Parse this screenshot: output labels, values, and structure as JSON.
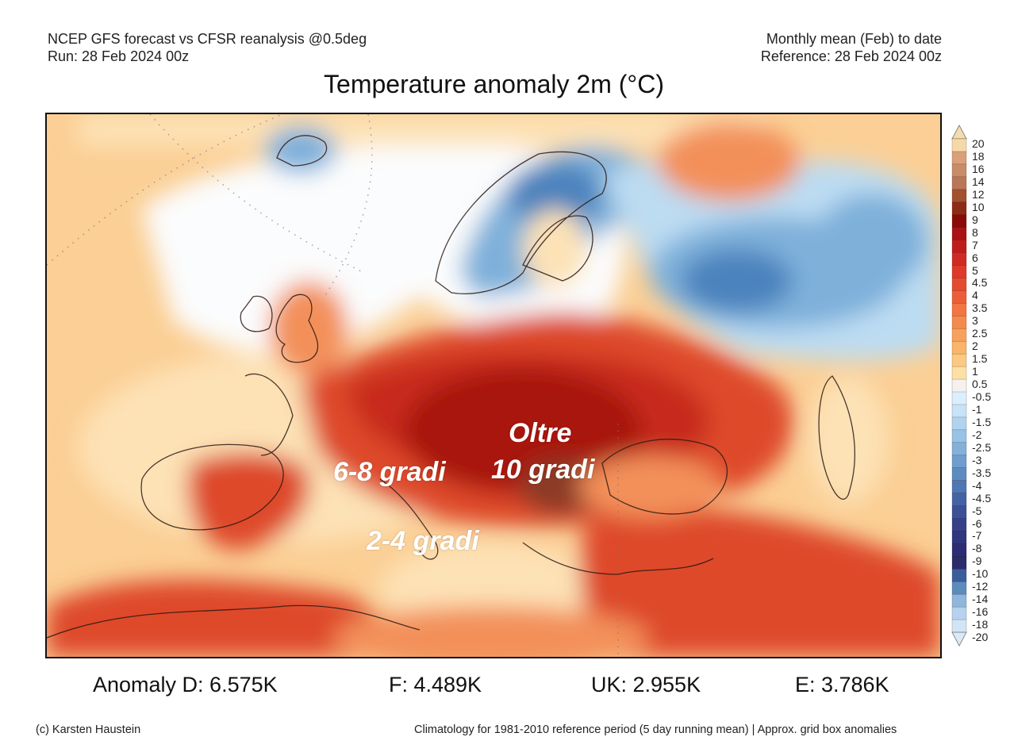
{
  "header": {
    "left_line1": "NCEP GFS forecast vs CFSR reanalysis @0.5deg",
    "left_line2": "Run: 28 Feb 2024 00z",
    "right_line1": "Monthly mean (Feb) to date",
    "right_line2": "Reference: 28 Feb 2024 00z"
  },
  "title": "Temperature anomaly 2m (°C)",
  "overlays": {
    "oltre": "Oltre",
    "ten": "10 gradi",
    "six_eight": "6-8 gradi",
    "two_four": "2-4 gradi"
  },
  "colorbar": {
    "unit": "°C",
    "labels": [
      "20",
      "18",
      "16",
      "14",
      "12",
      "10",
      "9",
      "8",
      "7",
      "6",
      "5",
      "4.5",
      "4",
      "3.5",
      "3",
      "2.5",
      "2",
      "1.5",
      "1",
      "0.5",
      "-0.5",
      "-1",
      "-1.5",
      "-2",
      "-2.5",
      "-3",
      "-3.5",
      "-4",
      "-4.5",
      "-5",
      "-6",
      "-7",
      "-8",
      "-9",
      "-10",
      "-12",
      "-14",
      "-16",
      "-18",
      "-20"
    ],
    "colors": [
      "#f5d9a8",
      "#d9a07a",
      "#c98c6a",
      "#b9775a",
      "#a2522f",
      "#8e2b14",
      "#8a0a0a",
      "#a81313",
      "#bf1d1b",
      "#d02a22",
      "#dc3a2a",
      "#e44b31",
      "#ec5e39",
      "#f27544",
      "#f58a4f",
      "#f8a15c",
      "#fab46b",
      "#fcc983",
      "#fde0a6",
      "#f4f1ee",
      "#dcefff",
      "#c6e3f7",
      "#b0d4ef",
      "#98c3e5",
      "#83b1da",
      "#6e9ece",
      "#5d8bc1",
      "#4e77b3",
      "#4363a4",
      "#3b5096",
      "#34418a",
      "#2f377d",
      "#2b2e72",
      "#2a2c6c",
      "#3c5d9c",
      "#5b8cbe",
      "#8fb6dc",
      "#b6d2ee",
      "#d2e5f6"
    ],
    "arrow_top_color": "#f6dcac",
    "arrow_bottom_color": "#d8eaf8"
  },
  "stats": {
    "d": "Anomaly D: 6.575K",
    "f": "F: 4.489K",
    "uk": "UK: 2.955K",
    "e": "E: 3.786K"
  },
  "footer": {
    "credit": "(c) Karsten Haustein",
    "note": "Climatology for 1981-2010 reference period (5 day running mean) | Approx. grid box anomalies"
  },
  "palette": {
    "ocean_warm": "#fbcf95",
    "ocean_pale": "#fde2b6",
    "white_zone": "#fbfcfd",
    "cold_light": "#bcdcf2",
    "cold_mid": "#7eb0da",
    "cold_dark": "#4c83bd",
    "warm_mid": "#f3905a",
    "warm_hot": "#de4a2c",
    "hot": "#c72a1c",
    "very_hot": "#a8140f",
    "extreme": "#8a3a26",
    "border": "#2a1a14"
  }
}
